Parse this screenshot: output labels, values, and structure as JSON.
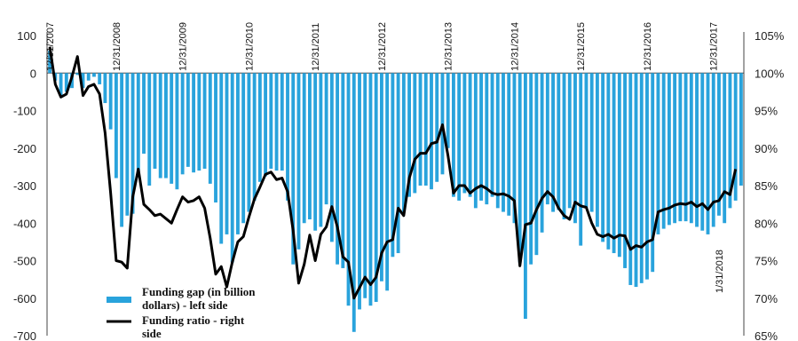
{
  "chart_data": {
    "type": "bar+line",
    "title": "",
    "left_axis": {
      "ticks": [
        100,
        0,
        -100,
        -200,
        -300,
        -400,
        -500,
        -600,
        -700
      ],
      "min": -700,
      "max": 100
    },
    "right_axis": {
      "ticks": [
        "105%",
        "100%",
        "95%",
        "90%",
        "85%",
        "80%",
        "75%",
        "70%",
        "65%"
      ],
      "min": 65,
      "max": 105
    },
    "date_labels": [
      {
        "text": "12/31/2007",
        "index": 0
      },
      {
        "text": "12/31/2008",
        "index": 12
      },
      {
        "text": "12/31/2009",
        "index": 24
      },
      {
        "text": "12/31/2010",
        "index": 36
      },
      {
        "text": "12/31/2011",
        "index": 48
      },
      {
        "text": "12/31/2012",
        "index": 60
      },
      {
        "text": "12/31/2013",
        "index": 72
      },
      {
        "text": "12/31/2014",
        "index": 84
      },
      {
        "text": "12/31/2015",
        "index": 96
      },
      {
        "text": "12/31/2016",
        "index": 108
      },
      {
        "text": "12/31/2017",
        "index": 120
      },
      {
        "text": "1/31/2018",
        "index": 121
      }
    ],
    "series": [
      {
        "name": "Funding gap (in billion dollars) - left side",
        "type": "bar",
        "color": "#29a3dc",
        "values": [
          60,
          -20,
          -60,
          -50,
          -40,
          -5,
          -40,
          -20,
          -10,
          -30,
          -80,
          -150,
          -280,
          -410,
          -380,
          -375,
          -270,
          -215,
          -300,
          -255,
          -280,
          -280,
          -295,
          -310,
          -270,
          -250,
          -265,
          -260,
          -255,
          -295,
          -345,
          -455,
          -430,
          -505,
          -430,
          -400,
          -370,
          -340,
          -290,
          -275,
          -255,
          -260,
          -260,
          -340,
          -510,
          -470,
          -400,
          -390,
          -420,
          -410,
          -350,
          -450,
          -510,
          -520,
          -620,
          -690,
          -630,
          -600,
          -620,
          -610,
          -555,
          -580,
          -490,
          -480,
          -370,
          -330,
          -320,
          -300,
          -300,
          -310,
          -290,
          -270,
          -200,
          -330,
          -340,
          -320,
          -330,
          -360,
          -340,
          -350,
          -330,
          -360,
          -370,
          -380,
          -400,
          -505,
          -655,
          -510,
          -485,
          -425,
          -350,
          -370,
          -365,
          -390,
          -360,
          -400,
          -460,
          -360,
          -370,
          -410,
          -450,
          -470,
          -480,
          -490,
          -520,
          -565,
          -570,
          -560,
          -550,
          -530,
          -430,
          -415,
          -405,
          -400,
          -395,
          -395,
          -400,
          -410,
          -420,
          -430,
          -410,
          -380,
          -400,
          -360,
          -340,
          -300
        ]
      },
      {
        "name": "Funding ratio - right side",
        "type": "line",
        "color": "#000000",
        "values": [
          103.5,
          98.5,
          96.8,
          97.2,
          99.5,
          102.2,
          97,
          98.2,
          98.5,
          97.2,
          92,
          84,
          75,
          74.8,
          74,
          83.5,
          87.2,
          82.5,
          81.8,
          81,
          81.2,
          80.6,
          80,
          81.8,
          83.5,
          82.8,
          83,
          83.5,
          82,
          78,
          73.2,
          74.2,
          71.5,
          74.8,
          77.5,
          78.2,
          80.8,
          83.2,
          84.8,
          86.5,
          86.8,
          85.8,
          86,
          84.2,
          79,
          72,
          74.5,
          78.4,
          75,
          78.5,
          79.5,
          82.2,
          79.5,
          75.5,
          74.8,
          70,
          71.4,
          72.8,
          71.8,
          72.8,
          76,
          77.5,
          77.8,
          82,
          81,
          86,
          88.5,
          89.3,
          89.3,
          90.6,
          90.8,
          93.1,
          89,
          84,
          85,
          85,
          84,
          84.6,
          85,
          84.6,
          84,
          83.8,
          83.9,
          83.6,
          83,
          74.3,
          79.8,
          80,
          81.8,
          83.3,
          84.2,
          83.5,
          82,
          81,
          80.5,
          82.8,
          82.3,
          82.1,
          80,
          78.5,
          78.2,
          78.5,
          78,
          78.4,
          78.3,
          76.5,
          77,
          76.8,
          77.5,
          77.8,
          81.5,
          81.8,
          82,
          82.4,
          82.6,
          82.5,
          82.8,
          82.2,
          82.6,
          81.8,
          82.8,
          83,
          84.2,
          83.8,
          87.2
        ]
      }
    ],
    "legend": {
      "placement": "bottom-left"
    }
  },
  "legend": {
    "bar_label_line1": "Funding gap (in billion",
    "bar_label_line2": "dollars) - left side",
    "line_label_line1": "Funding ratio - right",
    "line_label_line2": "side"
  }
}
